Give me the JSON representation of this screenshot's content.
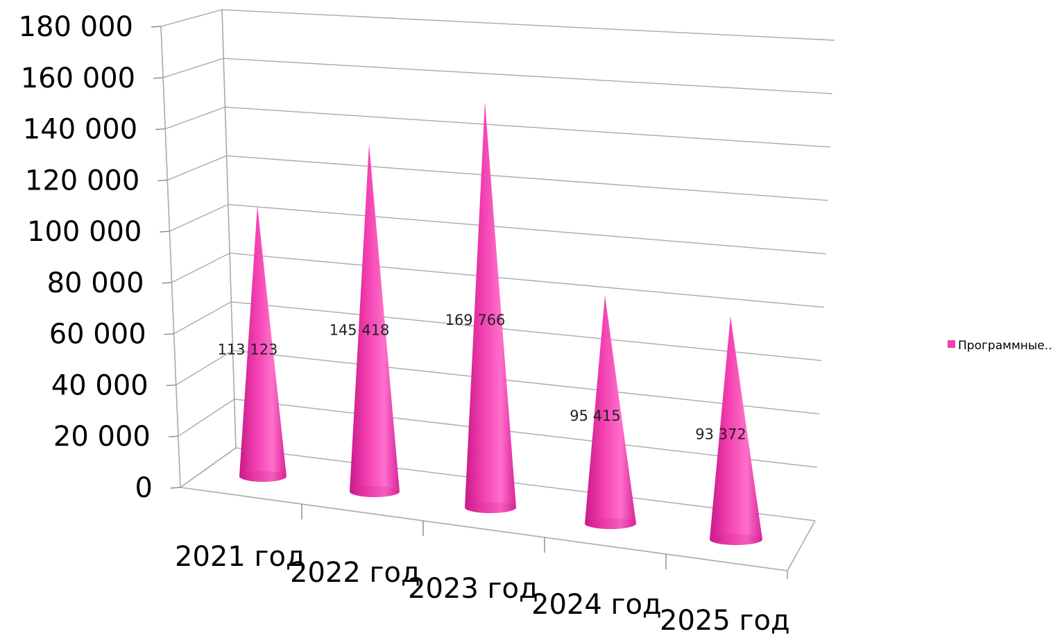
{
  "chart_data": {
    "type": "bar",
    "shape": "cone-3d",
    "categories": [
      "2021 год",
      "2022 год",
      "2023 год",
      "2024 год",
      "2025 год"
    ],
    "series": [
      {
        "name": "Программные..",
        "values": [
          113123,
          145418,
          169766,
          95415,
          93372
        ],
        "value_labels": [
          "113 123",
          "145 418",
          "169 766",
          "95 415",
          "93 372"
        ],
        "color": "#f23fb0"
      }
    ],
    "y_ticks": [
      "0",
      "20 000",
      "40 000",
      "60 000",
      "80 000",
      "100 000",
      "120 000",
      "140 000",
      "160 000",
      "180 000"
    ],
    "ylim": [
      0,
      180000
    ],
    "grid": true,
    "legend": "right"
  }
}
